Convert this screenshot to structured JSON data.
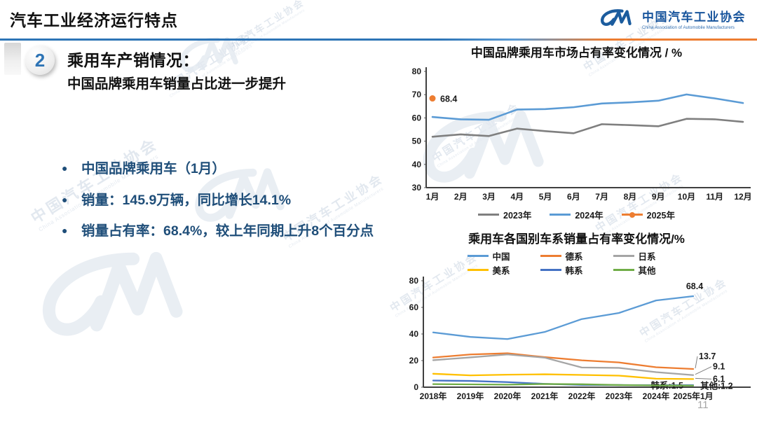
{
  "header": {
    "title": "汽车工业经济运行特点",
    "logo": {
      "org_cn": "中国汽车工业协会",
      "org_en": "China Association of Automobile Manufacturers"
    }
  },
  "section": {
    "number": "2",
    "heading": "乘用车产销情况：",
    "subheading": "中国品牌乘用车销量占比进一步提升"
  },
  "bullets": [
    "中国品牌乘用车（1月）",
    "销量：145.9万辆，同比增长14.1%",
    "销量占有率：68.4%，较上年同期上升8个百分点"
  ],
  "watermark": {
    "cn": "中国汽车工业协会",
    "en": "China Association of Automobile Manufacturers"
  },
  "page_number": "11",
  "colors": {
    "accent_blue": "#2e75b6",
    "accent_orange": "#ed7d31",
    "logo_blue": "#17549c",
    "bullet_navy": "#1f4e79"
  },
  "chart_data": [
    {
      "type": "line",
      "title": "中国品牌乘用车市场占有率变化情况 / %",
      "categories": [
        "1月",
        "2月",
        "3月",
        "4月",
        "5月",
        "6月",
        "7月",
        "8月",
        "9月",
        "10月",
        "11月",
        "12月"
      ],
      "ylim": [
        30,
        80
      ],
      "yticks": [
        30,
        40,
        50,
        60,
        70,
        80
      ],
      "grid": false,
      "legend_position": "bottom",
      "series": [
        {
          "name": "2023年",
          "color": "#7f7f7f",
          "values": [
            51.9,
            52.9,
            52.2,
            55.4,
            54.3,
            53.4,
            57.3,
            56.9,
            56.4,
            59.6,
            59.4,
            58.3
          ]
        },
        {
          "name": "2024年",
          "color": "#5b9bd5",
          "values": [
            60.4,
            59.4,
            59.2,
            63.6,
            63.8,
            64.6,
            66.2,
            66.7,
            67.4,
            70.1,
            68.4,
            66.4
          ]
        },
        {
          "name": "2025年",
          "color": "#ed7d31",
          "marker": true,
          "point_label": "68.4",
          "values": [
            68.4
          ]
        }
      ]
    },
    {
      "type": "line",
      "title": "乘用车各国别车系销量占有率变化情况/%",
      "categories": [
        "2018年",
        "2019年",
        "2020年",
        "2021年",
        "2022年",
        "2023年",
        "2024年",
        "2025年1月"
      ],
      "ylim": [
        0,
        80
      ],
      "yticks": [
        0,
        20,
        40,
        60,
        80
      ],
      "grid": false,
      "legend_position": "top",
      "series": [
        {
          "name": "中国",
          "color": "#5b9bd5",
          "values": [
            41.2,
            37.8,
            36.2,
            41.5,
            51.2,
            55.8,
            65.2,
            68.4
          ],
          "end_label": {
            "text": "68.4",
            "dx": 2,
            "dy": -10,
            "anchor": "middle"
          }
        },
        {
          "name": "德系",
          "color": "#ed7d31",
          "values": [
            22.3,
            24.6,
            25.5,
            22.6,
            20.2,
            18.6,
            15.0,
            13.7
          ],
          "end_label": {
            "text": "13.7",
            "dx": 8,
            "dy": -14,
            "anchor": "start",
            "leader": true
          }
        },
        {
          "name": "日系",
          "color": "#a5a5a5",
          "values": [
            20.3,
            22.4,
            24.6,
            22.2,
            14.8,
            14.5,
            11.3,
            9.1
          ],
          "end_label": {
            "text": "9.1",
            "dx": 28,
            "dy": -8,
            "anchor": "start",
            "leader": true
          }
        },
        {
          "name": "美系",
          "color": "#ffc000",
          "values": [
            10.1,
            8.9,
            9.4,
            9.7,
            9.2,
            8.7,
            6.4,
            6.1
          ],
          "end_label": {
            "text": "6.1",
            "dx": 28,
            "dy": 4,
            "anchor": "start",
            "leader": true
          }
        },
        {
          "name": "韩系",
          "color": "#4472c4",
          "values": [
            5.0,
            4.7,
            3.8,
            2.5,
            1.7,
            1.6,
            1.5,
            1.5
          ],
          "end_label": {
            "text": "韩系:1.5",
            "dx": -14,
            "dy": 5,
            "anchor": "end"
          }
        },
        {
          "name": "其他",
          "color": "#70ad47",
          "values": [
            2.3,
            2.1,
            1.9,
            2.4,
            2.2,
            1.6,
            1.3,
            1.2
          ],
          "end_label": {
            "text": "其他:1.2",
            "dx": 10,
            "dy": 5,
            "anchor": "start"
          }
        }
      ]
    }
  ]
}
